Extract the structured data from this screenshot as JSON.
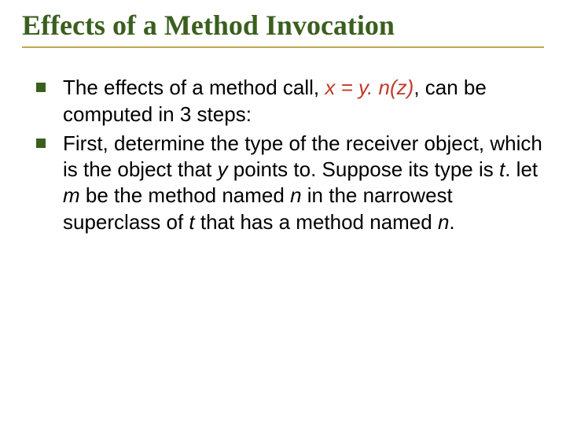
{
  "colors": {
    "title": "#3a5f1e",
    "underline": "#c0a94e",
    "bullet": "#3a5f1e",
    "accent": "#c0392b",
    "body": "#000000"
  },
  "title": "Effects of a Method Invocation",
  "bullets": [
    {
      "prefix": "The effects of a method call, ",
      "expr": "x = y. n(z)",
      "suffix": ", can be computed in 3 steps:"
    },
    {
      "p1": "First, determine the type of the receiver object, which is the object that ",
      "i1": "y",
      "p2": " points to. Suppose its type is ",
      "i2": "t",
      "p3": ". let ",
      "i3": "m",
      "p4": " be the method named ",
      "i4": "n",
      "p5": " in the narrowest superclass of ",
      "i5": "t",
      "p6": " that has a method named ",
      "i6": "n",
      "p7": "."
    }
  ]
}
